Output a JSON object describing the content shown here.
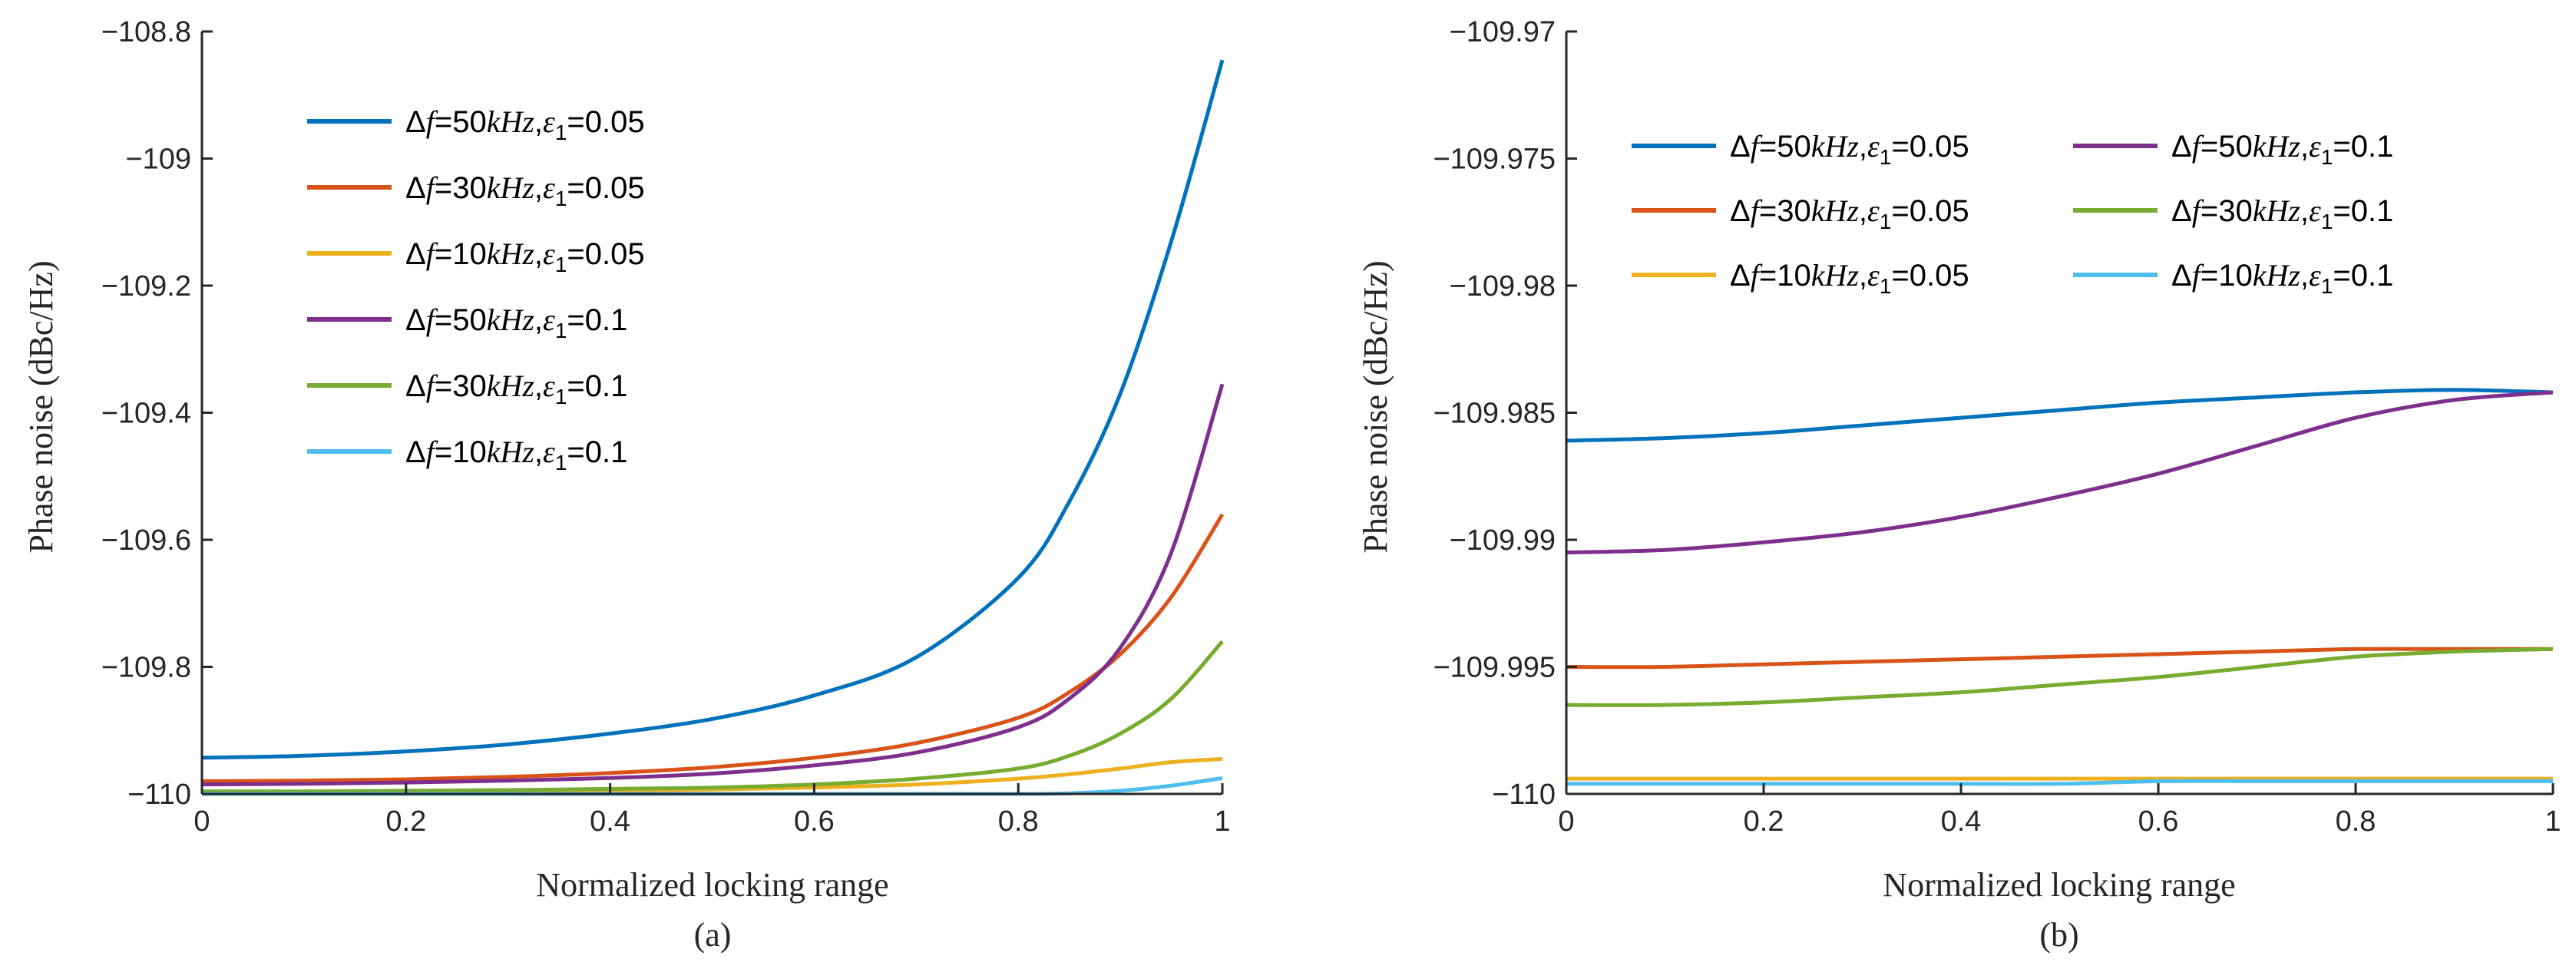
{
  "figure": {
    "panels": [
      {
        "caption": "(a)"
      },
      {
        "caption": "(b)"
      }
    ]
  },
  "chart_data": [
    {
      "type": "line",
      "caption": "(a)",
      "xlabel": "Normalized locking range",
      "ylabel": "Phase noise (dBc/Hz)",
      "xlim": [
        0,
        1
      ],
      "ylim": [
        -110,
        -108.8
      ],
      "xticks": [
        0,
        0.2,
        0.4,
        0.6,
        0.8,
        1
      ],
      "xtick_labels": [
        "0",
        "0.2",
        "0.4",
        "0.6",
        "0.8",
        "1"
      ],
      "yticks": [
        -110,
        -109.8,
        -109.6,
        -109.4,
        -109.2,
        -109,
        -108.8
      ],
      "ytick_labels": [
        "−110",
        "−109.8",
        "−109.6",
        "−109.4",
        "−109.2",
        "−109",
        "−108.8"
      ],
      "grid": false,
      "legend_position": "top-left",
      "legend_columns": 1,
      "x": [
        0,
        0.1,
        0.2,
        0.3,
        0.4,
        0.5,
        0.6,
        0.7,
        0.8,
        0.85,
        0.9,
        0.95,
        1.0
      ],
      "series": [
        {
          "name": "Δf=50kHz,ε1=0.05",
          "dfval": "50",
          "epsval": "0.05",
          "color": "#0072BD",
          "values": [
            -109.943,
            -109.94,
            -109.933,
            -109.922,
            -109.905,
            -109.882,
            -109.845,
            -109.785,
            -109.66,
            -109.54,
            -109.37,
            -109.13,
            -108.845
          ]
        },
        {
          "name": "Δf=30kHz,ε1=0.05",
          "dfval": "30",
          "epsval": "0.05",
          "color": "#D95319",
          "values": [
            -109.98,
            -109.979,
            -109.977,
            -109.973,
            -109.967,
            -109.958,
            -109.943,
            -109.92,
            -109.88,
            -109.84,
            -109.78,
            -109.69,
            -109.56
          ]
        },
        {
          "name": "Δf=10kHz,ε1=0.05",
          "dfval": "10",
          "epsval": "0.05",
          "color": "#EDB120",
          "values": [
            -109.998,
            -109.998,
            -109.997,
            -109.996,
            -109.995,
            -109.993,
            -109.99,
            -109.985,
            -109.976,
            -109.969,
            -109.96,
            -109.95,
            -109.945
          ]
        },
        {
          "name": "Δf=50kHz,ε1=0.1",
          "dfval": "50",
          "epsval": "0.1",
          "color": "#7E2F8E",
          "values": [
            -109.985,
            -109.984,
            -109.982,
            -109.979,
            -109.975,
            -109.968,
            -109.955,
            -109.935,
            -109.895,
            -109.85,
            -109.77,
            -109.62,
            -109.355
          ]
        },
        {
          "name": "Δf=30kHz,ε1=0.1",
          "dfval": "30",
          "epsval": "0.1",
          "color": "#77AC30",
          "values": [
            -109.996,
            -109.996,
            -109.995,
            -109.994,
            -109.992,
            -109.99,
            -109.985,
            -109.976,
            -109.96,
            -109.94,
            -109.905,
            -109.85,
            -109.76
          ]
        },
        {
          "name": "Δf=10kHz,ε1=0.1",
          "dfval": "10",
          "epsval": "0.1",
          "color": "#4DBEEE",
          "values": [
            -110.0,
            -110.0,
            -110.0,
            -110.0,
            -110.0,
            -110.0,
            -110.0,
            -110.0,
            -110.0,
            -109.999,
            -109.995,
            -109.987,
            -109.975
          ]
        }
      ]
    },
    {
      "type": "line",
      "caption": "(b)",
      "xlabel": "Normalized locking range",
      "ylabel": "Phase noise (dBc/Hz)",
      "xlim": [
        0,
        1
      ],
      "ylim": [
        -110,
        -109.97
      ],
      "xticks": [
        0,
        0.2,
        0.4,
        0.6,
        0.8,
        1
      ],
      "xtick_labels": [
        "0",
        "0.2",
        "0.4",
        "0.6",
        "0.8",
        "1"
      ],
      "yticks": [
        -110,
        -109.995,
        -109.99,
        -109.985,
        -109.98,
        -109.975,
        -109.97
      ],
      "ytick_labels": [
        "−110",
        "−109.995",
        "−109.99",
        "−109.985",
        "−109.98",
        "−109.975",
        "−109.97"
      ],
      "grid": false,
      "legend_position": "top",
      "legend_columns": 2,
      "x": [
        0,
        0.1,
        0.2,
        0.3,
        0.4,
        0.5,
        0.6,
        0.7,
        0.8,
        0.9,
        1.0
      ],
      "series": [
        {
          "name": "Δf=50kHz,ε1=0.05",
          "dfval": "50",
          "epsval": "0.05",
          "color": "#0072BD",
          "values": [
            -109.9861,
            -109.986,
            -109.9858,
            -109.9855,
            -109.9852,
            -109.9849,
            -109.9846,
            -109.9844,
            -109.9842,
            -109.9841,
            -109.9842
          ]
        },
        {
          "name": "Δf=30kHz,ε1=0.05",
          "dfval": "30",
          "epsval": "0.05",
          "color": "#D95319",
          "values": [
            -109.995,
            -109.995,
            -109.9949,
            -109.9948,
            -109.9947,
            -109.9946,
            -109.9945,
            -109.9944,
            -109.9943,
            -109.9943,
            -109.9943
          ]
        },
        {
          "name": "Δf=10kHz,ε1=0.05",
          "dfval": "10",
          "epsval": "0.05",
          "color": "#EDB120",
          "values": [
            -109.9994,
            -109.9994,
            -109.9994,
            -109.9994,
            -109.9994,
            -109.9994,
            -109.9994,
            -109.9994,
            -109.9994,
            -109.9994,
            -109.9994
          ]
        },
        {
          "name": "Δf=50kHz,ε1=0.1",
          "dfval": "50",
          "epsval": "0.1",
          "color": "#7E2F8E",
          "values": [
            -109.9905,
            -109.9904,
            -109.9901,
            -109.9897,
            -109.9891,
            -109.9883,
            -109.9874,
            -109.9863,
            -109.9852,
            -109.9845,
            -109.9842
          ]
        },
        {
          "name": "Δf=30kHz,ε1=0.1",
          "dfval": "30",
          "epsval": "0.1",
          "color": "#77AC30",
          "values": [
            -109.9965,
            -109.9965,
            -109.9964,
            -109.9962,
            -109.996,
            -109.9957,
            -109.9954,
            -109.995,
            -109.9946,
            -109.9944,
            -109.9943
          ]
        },
        {
          "name": "Δf=10kHz,ε1=0.1",
          "dfval": "10",
          "epsval": "0.1",
          "color": "#4DBEEE",
          "values": [
            -109.9996,
            -109.9996,
            -109.9996,
            -109.9996,
            -109.9996,
            -109.9996,
            -109.9995,
            -109.9995,
            -109.9995,
            -109.9995,
            -109.9995
          ]
        }
      ]
    }
  ]
}
